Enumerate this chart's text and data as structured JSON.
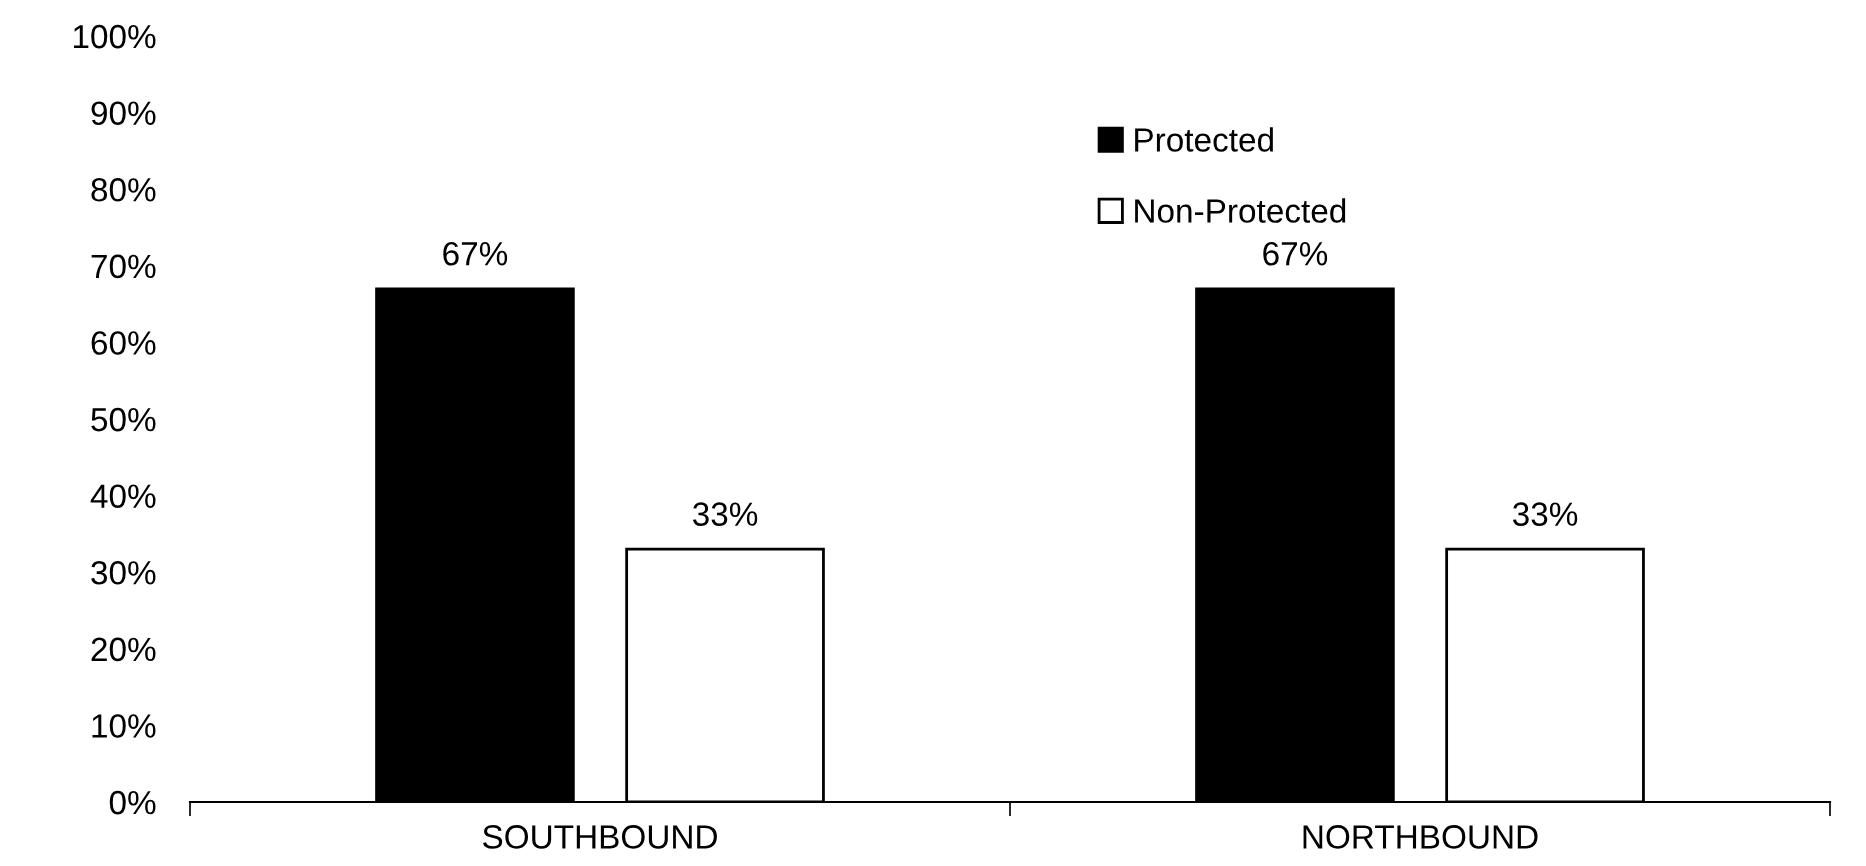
{
  "chart_data": {
    "type": "bar",
    "categories": [
      "SOUTHBOUND",
      "NORTHBOUND"
    ],
    "series": [
      {
        "name": "Protected",
        "color": "#000000",
        "values": [
          67,
          67
        ],
        "value_labels": [
          "67%",
          "67%"
        ]
      },
      {
        "name": "Non-Protected",
        "color": "#ffffff",
        "values": [
          33,
          33
        ],
        "value_labels": [
          "33%",
          "33%"
        ]
      }
    ],
    "ylim": [
      0,
      100
    ],
    "yticks": [
      {
        "value": 0,
        "label": "0%"
      },
      {
        "value": 10,
        "label": "10%"
      },
      {
        "value": 20,
        "label": "20%"
      },
      {
        "value": 30,
        "label": "30%"
      },
      {
        "value": 40,
        "label": "40%"
      },
      {
        "value": 50,
        "label": "50%"
      },
      {
        "value": 60,
        "label": "60%"
      },
      {
        "value": 70,
        "label": "70%"
      },
      {
        "value": 80,
        "label": "80%"
      },
      {
        "value": 90,
        "label": "90%"
      },
      {
        "value": 100,
        "label": "100%"
      }
    ],
    "grid": false,
    "legend": "top"
  }
}
